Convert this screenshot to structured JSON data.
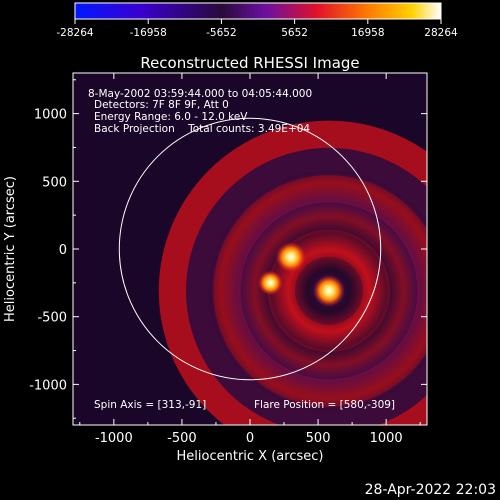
{
  "colorbar": {
    "ticks": [
      "-28264",
      "-16958",
      "-5652",
      "5652",
      "16958",
      "28264"
    ],
    "colors": [
      "#0018ff",
      "#3a00d0",
      "#2a0a3a",
      "#6a10a0",
      "#e0102a",
      "#ff7a00",
      "#ffd000",
      "#ffffff"
    ]
  },
  "chart_data": {
    "type": "heatmap",
    "title": "Reconstructed RHESSI Image",
    "xlabel": "Heliocentric X (arcsec)",
    "ylabel": "Heliocentric Y (arcsec)",
    "xlim": [
      -1300,
      1300
    ],
    "ylim": [
      -1300,
      1300
    ],
    "x_ticks": [
      "-1000",
      "-500",
      "0",
      "500",
      "1000"
    ],
    "y_ticks": [
      "-1000",
      "-500",
      "0",
      "500",
      "1000"
    ],
    "x_tick_values": [
      -1000,
      -500,
      0,
      500,
      1000
    ],
    "y_tick_values": [
      -1000,
      -500,
      0,
      500,
      1000
    ],
    "color_range": [
      -28264,
      28264
    ],
    "info_lines": [
      "8-May-2002 03:59:44.000 to 04:05:44.000",
      "Detectors: 7F 8F 9F, Att 0",
      "Energy Range: 6.0 - 12.0 keV",
      "Back Projection    Total counts: 3.49E+04"
    ],
    "spin_axis": "Spin Axis = [313,-91]",
    "flare_position": "Flare Position = [580,-309]",
    "solar_disk": {
      "center": [
        0,
        0
      ],
      "radius": 960
    },
    "sources": [
      {
        "x": 580,
        "y": -309,
        "intensity": 28264
      },
      {
        "x": 300,
        "y": -60,
        "intensity": 26000
      },
      {
        "x": 150,
        "y": -250,
        "intensity": 18000
      }
    ],
    "rings": [
      {
        "radius": 250,
        "sign": -1
      },
      {
        "radius": 450,
        "sign": 1
      },
      {
        "radius": 650,
        "sign": -1
      },
      {
        "radius": 850,
        "sign": 1
      },
      {
        "radius": 1050,
        "sign": -1
      },
      {
        "radius": 1250,
        "sign": 1
      }
    ],
    "grid": false
  },
  "footer": {
    "timestamp": "28-Apr-2022 22:03"
  }
}
